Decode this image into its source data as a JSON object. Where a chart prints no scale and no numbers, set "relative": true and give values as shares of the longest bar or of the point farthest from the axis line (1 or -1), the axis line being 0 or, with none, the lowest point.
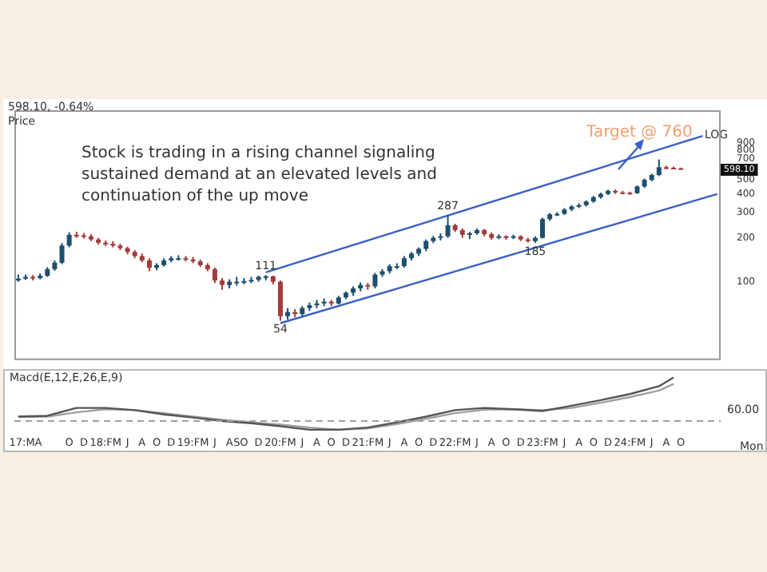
{
  "chart_data": [
    {
      "type": "candlestick",
      "title": "598.10, -0.64%",
      "ylabel": "Price",
      "log": "y",
      "ylim": [
        29,
        1500
      ],
      "yticks": [
        100,
        200,
        300,
        400,
        500,
        700,
        800,
        900
      ],
      "xlim": [
        "2017-02-15",
        "2025-03-15"
      ],
      "tick_labels": "y",
      "x": [
        "2017-03",
        "2017-04",
        "2017-05",
        "2017-06",
        "2017-07",
        "2017-08",
        "2017-09",
        "2017-10",
        "2017-11",
        "2017-12",
        "2018-01",
        "2018-02",
        "2018-03",
        "2018-04",
        "2018-05",
        "2018-06",
        "2018-07",
        "2018-08",
        "2018-09",
        "2018-10",
        "2018-11",
        "2018-12",
        "2019-01",
        "2019-02",
        "2019-03",
        "2019-04",
        "2019-05",
        "2019-06",
        "2019-07",
        "2019-08",
        "2019-09",
        "2019-10",
        "2019-11",
        "2019-12",
        "2020-01",
        "2020-02",
        "2020-03",
        "2020-04",
        "2020-05",
        "2020-06",
        "2020-07",
        "2020-08",
        "2020-09",
        "2020-10",
        "2020-11",
        "2020-12",
        "2021-01",
        "2021-02",
        "2021-03",
        "2021-04",
        "2021-05",
        "2021-06",
        "2021-07",
        "2021-08",
        "2021-09",
        "2021-10",
        "2021-11",
        "2021-12",
        "2022-01",
        "2022-02",
        "2022-03",
        "2022-04",
        "2022-05",
        "2022-06",
        "2022-07",
        "2022-08",
        "2022-09",
        "2022-10",
        "2022-11",
        "2022-12",
        "2023-01",
        "2023-02",
        "2023-03",
        "2023-04",
        "2023-05",
        "2023-06",
        "2023-07",
        "2023-08",
        "2023-09",
        "2023-10",
        "2023-11",
        "2023-12",
        "2024-01",
        "2024-02",
        "2024-03",
        "2024-04",
        "2024-05",
        "2024-06",
        "2024-07",
        "2024-08",
        "2024-09",
        "2024-10"
      ],
      "ohlc": [
        [
          102,
          112,
          100,
          105
        ],
        [
          105,
          112,
          103,
          108
        ],
        [
          108,
          111,
          102,
          106
        ],
        [
          106,
          114,
          104,
          110
        ],
        [
          110,
          126,
          108,
          122
        ],
        [
          122,
          140,
          119,
          135
        ],
        [
          135,
          184,
          132,
          177
        ],
        [
          177,
          218,
          172,
          210
        ],
        [
          210,
          220,
          200,
          208
        ],
        [
          208,
          216,
          198,
          205
        ],
        [
          205,
          212,
          190,
          195
        ],
        [
          195,
          200,
          180,
          185
        ],
        [
          185,
          192,
          176,
          182
        ],
        [
          182,
          190,
          172,
          177
        ],
        [
          177,
          182,
          165,
          170
        ],
        [
          170,
          174,
          154,
          160
        ],
        [
          160,
          165,
          145,
          150
        ],
        [
          150,
          156,
          136,
          140
        ],
        [
          140,
          145,
          118,
          125
        ],
        [
          125,
          134,
          120,
          130
        ],
        [
          130,
          145,
          127,
          140
        ],
        [
          140,
          150,
          136,
          145
        ],
        [
          145,
          152,
          140,
          145
        ],
        [
          145,
          150,
          138,
          142
        ],
        [
          142,
          148,
          134,
          138
        ],
        [
          138,
          142,
          126,
          130
        ],
        [
          130,
          134,
          118,
          122
        ],
        [
          122,
          125,
          98,
          102
        ],
        [
          102,
          106,
          88,
          95
        ],
        [
          95,
          104,
          90,
          100
        ],
        [
          100,
          108,
          94,
          100
        ],
        [
          100,
          106,
          96,
          101
        ],
        [
          101,
          108,
          98,
          103
        ],
        [
          103,
          110,
          100,
          108
        ],
        [
          108,
          111,
          102,
          109
        ],
        [
          109,
          110,
          96,
          100
        ],
        [
          100,
          102,
          54,
          58
        ],
        [
          58,
          66,
          55,
          62
        ],
        [
          62,
          65,
          57,
          60
        ],
        [
          60,
          68,
          58,
          66
        ],
        [
          66,
          72,
          63,
          69
        ],
        [
          69,
          75,
          66,
          71
        ],
        [
          71,
          77,
          68,
          73
        ],
        [
          73,
          75,
          68,
          71
        ],
        [
          71,
          80,
          70,
          78
        ],
        [
          78,
          86,
          76,
          84
        ],
        [
          84,
          93,
          80,
          90
        ],
        [
          90,
          99,
          86,
          95
        ],
        [
          95,
          98,
          88,
          93
        ],
        [
          93,
          115,
          90,
          112
        ],
        [
          112,
          122,
          108,
          118
        ],
        [
          118,
          132,
          114,
          128
        ],
        [
          128,
          134,
          122,
          128
        ],
        [
          128,
          150,
          125,
          145
        ],
        [
          145,
          160,
          140,
          156
        ],
        [
          156,
          172,
          150,
          168
        ],
        [
          168,
          195,
          162,
          190
        ],
        [
          190,
          206,
          184,
          200
        ],
        [
          200,
          215,
          192,
          205
        ],
        [
          205,
          287,
          200,
          244
        ],
        [
          244,
          250,
          220,
          226
        ],
        [
          226,
          232,
          200,
          210
        ],
        [
          210,
          220,
          196,
          215
        ],
        [
          215,
          232,
          210,
          226
        ],
        [
          226,
          230,
          205,
          212
        ],
        [
          212,
          218,
          194,
          200
        ],
        [
          200,
          212,
          196,
          205
        ],
        [
          205,
          208,
          194,
          200
        ],
        [
          200,
          210,
          196,
          205
        ],
        [
          205,
          208,
          190,
          195
        ],
        [
          195,
          200,
          186,
          190
        ],
        [
          190,
          205,
          185,
          200
        ],
        [
          200,
          275,
          198,
          269
        ],
        [
          269,
          296,
          262,
          290
        ],
        [
          290,
          300,
          282,
          292
        ],
        [
          292,
          320,
          288,
          313
        ],
        [
          313,
          335,
          305,
          328
        ],
        [
          328,
          345,
          320,
          335
        ],
        [
          335,
          362,
          328,
          355
        ],
        [
          355,
          388,
          348,
          380
        ],
        [
          380,
          408,
          372,
          400
        ],
        [
          400,
          428,
          394,
          420
        ],
        [
          420,
          430,
          400,
          410
        ],
        [
          410,
          420,
          398,
          408
        ],
        [
          408,
          415,
          395,
          405
        ],
        [
          405,
          458,
          400,
          450
        ],
        [
          450,
          510,
          440,
          500
        ],
        [
          500,
          550,
          488,
          540
        ],
        [
          540,
          690,
          530,
          610
        ],
        [
          610,
          625,
          590,
          605
        ],
        [
          605,
          615,
          592,
          600
        ],
        [
          600,
          606,
          590,
          598
        ]
      ],
      "colors": [
        "#1d4f6e",
        "#1d4f6e",
        "#a33b3b",
        "#1d4f6e",
        "#1d4f6e",
        "#1d4f6e",
        "#1d4f6e",
        "#1d4f6e",
        "#a33b3b",
        "#a33b3b",
        "#a33b3b",
        "#a33b3b",
        "#a33b3b",
        "#a33b3b",
        "#a33b3b",
        "#a33b3b",
        "#a33b3b",
        "#a33b3b",
        "#a33b3b",
        "#1d4f6e",
        "#1d4f6e",
        "#1d4f6e",
        "#1d4f6e",
        "#a33b3b",
        "#a33b3b",
        "#a33b3b",
        "#a33b3b",
        "#a33b3b",
        "#a33b3b",
        "#1d4f6e",
        "#1d4f6e",
        "#1d4f6e",
        "#1d4f6e",
        "#1d4f6e",
        "#1d4f6e",
        "#a33b3b",
        "#a33b3b",
        "#1d4f6e",
        "#a33b3b",
        "#1d4f6e",
        "#1d4f6e",
        "#1d4f6e",
        "#1d4f6e",
        "#a33b3b",
        "#1d4f6e",
        "#1d4f6e",
        "#1d4f6e",
        "#1d4f6e",
        "#a33b3b",
        "#1d4f6e",
        "#1d4f6e",
        "#1d4f6e",
        "#1d4f6e",
        "#1d4f6e",
        "#1d4f6e",
        "#1d4f6e",
        "#1d4f6e",
        "#1d4f6e",
        "#1d4f6e",
        "#1d4f6e",
        "#a33b3b",
        "#a33b3b",
        "#1d4f6e",
        "#1d4f6e",
        "#a33b3b",
        "#a33b3b",
        "#1d4f6e",
        "#a33b3b",
        "#1d4f6e",
        "#a33b3b",
        "#a33b3b",
        "#1d4f6e",
        "#1d4f6e",
        "#1d4f6e",
        "#1d4f6e",
        "#1d4f6e",
        "#1d4f6e",
        "#1d4f6e",
        "#1d4f6e",
        "#1d4f6e",
        "#1d4f6e",
        "#1d4f6e",
        "#a33b3b",
        "#a33b3b",
        "#a33b3b",
        "#1d4f6e",
        "#1d4f6e",
        "#1d4f6e",
        "#1d4f6e",
        "#a33b3b",
        "#a33b3b",
        "#a33b3b"
      ],
      "series": [
        {
          "type": "line",
          "color": "#3a5fc8",
          "x": [
            "2020-01",
            "2025-01"
          ],
          "values": [
            116,
            1000
          ]
        },
        {
          "type": "line",
          "color": "#3a5fc8",
          "x": [
            "2020-03",
            "2025-03"
          ],
          "values": [
            52,
            400
          ]
        }
      ],
      "annotations": [
        "Stock is trading in a rising channel signaling sustained demand at an elevated levels and continuation of the up move",
        "LOG",
        {
          "text": "111",
          "x": "2020-01",
          "y": 111
        },
        {
          "text": "54",
          "x": "2020-03",
          "y": 54
        },
        {
          "text": "287",
          "x": "2022-02",
          "y": 287
        },
        {
          "text": "185",
          "x": "2023-02",
          "y": 185
        },
        "Target @ 760",
        "598.10"
      ]
    },
    {
      "type": "line",
      "title": "Macd(E,12,E,26,E,9)",
      "relative": true,
      "xlim": [
        "2017-02-15",
        "2025-03-15"
      ],
      "tick_labels": "x",
      "x": [
        "2017-03",
        "2017-07",
        "2017-11",
        "2018-03",
        "2018-07",
        "2018-11",
        "2019-03",
        "2019-07",
        "2019-11",
        "2020-03",
        "2020-07",
        "2020-11",
        "2021-03",
        "2021-07",
        "2021-11",
        "2022-03",
        "2022-07",
        "2022-11",
        "2023-03",
        "2023-07",
        "2023-11",
        "2024-03",
        "2024-07",
        "2024-09"
      ],
      "series": [
        {
          "color": "#555555",
          "values": [
            0.1,
            0.12,
            0.3,
            0.3,
            0.25,
            0.15,
            0.08,
            0.0,
            -0.05,
            -0.12,
            -0.2,
            -0.2,
            -0.15,
            -0.03,
            0.1,
            0.25,
            0.3,
            0.27,
            0.23,
            0.35,
            0.48,
            0.62,
            0.8,
            1.0
          ]
        },
        {
          "color": "#a0a0a0",
          "values": [
            0.1,
            0.1,
            0.2,
            0.27,
            0.25,
            0.18,
            0.1,
            0.03,
            -0.03,
            -0.08,
            -0.15,
            -0.2,
            -0.17,
            -0.07,
            0.05,
            0.18,
            0.26,
            0.27,
            0.25,
            0.3,
            0.42,
            0.55,
            0.7,
            0.85
          ]
        }
      ],
      "ref_lines": [
        {
          "axis": "y",
          "value": 0,
          "color": "#a0a0a0",
          "line_style": "dashed"
        }
      ],
      "xticks": [
        {
          "value": "2017-04",
          "label": "17:MA"
        },
        {
          "value": "2017-10",
          "label": "O"
        },
        {
          "value": "2017-12",
          "label": "D"
        },
        {
          "value": "2018-03",
          "label": "18:FM"
        },
        {
          "value": "2018-06",
          "label": "J"
        },
        {
          "value": "2018-08",
          "label": "A"
        },
        {
          "value": "2018-10",
          "label": "O"
        },
        {
          "value": "2018-12",
          "label": "D"
        },
        {
          "value": "2019-03",
          "label": "19:FM"
        },
        {
          "value": "2019-06",
          "label": "J"
        },
        {
          "value": "2019-08",
          "label": "A"
        },
        {
          "value": "2019-09",
          "label": "S"
        },
        {
          "value": "2019-10",
          "label": "O"
        },
        {
          "value": "2019-12",
          "label": "D"
        },
        {
          "value": "2020-03",
          "label": "20:FM"
        },
        {
          "value": "2020-06",
          "label": "J"
        },
        {
          "value": "2020-08",
          "label": "A"
        },
        {
          "value": "2020-10",
          "label": "O"
        },
        {
          "value": "2020-12",
          "label": "D"
        },
        {
          "value": "2021-03",
          "label": "21:FM"
        },
        {
          "value": "2021-06",
          "label": "J"
        },
        {
          "value": "2021-08",
          "label": "A"
        },
        {
          "value": "2021-10",
          "label": "O"
        },
        {
          "value": "2021-12",
          "label": "D"
        },
        {
          "value": "2022-03",
          "label": "22:FM"
        },
        {
          "value": "2022-06",
          "label": "J"
        },
        {
          "value": "2022-08",
          "label": "A"
        },
        {
          "value": "2022-10",
          "label": "O"
        },
        {
          "value": "2022-12",
          "label": "D"
        },
        {
          "value": "2023-03",
          "label": "23:FM"
        },
        {
          "value": "2023-06",
          "label": "J"
        },
        {
          "value": "2023-08",
          "label": "A"
        },
        {
          "value": "2023-10",
          "label": "O"
        },
        {
          "value": "2023-12",
          "label": "D"
        },
        {
          "value": "2024-03",
          "label": "24:FM"
        },
        {
          "value": "2024-06",
          "label": "J"
        },
        {
          "value": "2024-08",
          "label": "A"
        },
        {
          "value": "2024-10",
          "label": "O"
        }
      ],
      "annotations": [
        "60.00",
        "Mon"
      ]
    }
  ]
}
